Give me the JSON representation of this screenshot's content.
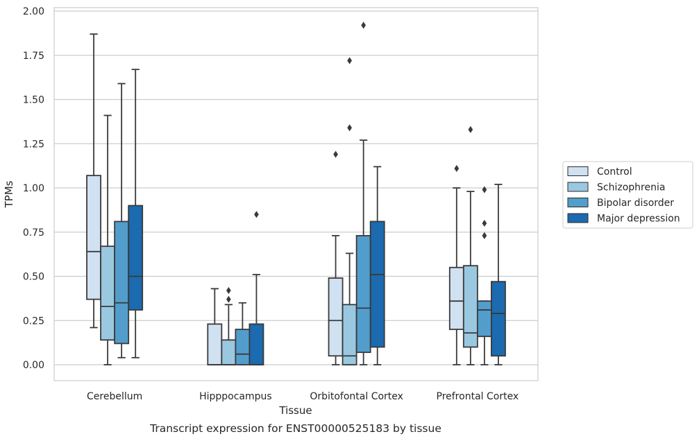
{
  "chart_data": {
    "type": "box",
    "xlabel": "Tissue",
    "ylabel": "TPMs",
    "caption": "Transcript expression for ENST00000525183 by tissue",
    "ylim": [
      -0.09,
      2.04
    ],
    "yticks": [
      "0.00",
      "0.25",
      "0.50",
      "0.75",
      "1.00",
      "1.25",
      "1.50",
      "1.75",
      "2.00"
    ],
    "grid": "horizontal",
    "legend_position": "right",
    "categories": [
      "Cerebellum",
      "Hipppocampus",
      "Orbitofontal Cortex",
      "Prefrontal Cortex"
    ],
    "series": [
      {
        "name": "Control",
        "color": "#d0e1f2",
        "boxes": [
          {
            "whislo": 0.21,
            "q1": 0.37,
            "med": 0.64,
            "q3": 1.07,
            "whishi": 1.87,
            "fliers": []
          },
          {
            "whislo": 0.0,
            "q1": 0.0,
            "med": 0.0,
            "q3": 0.23,
            "whishi": 0.43,
            "fliers": []
          },
          {
            "whislo": 0.0,
            "q1": 0.05,
            "med": 0.25,
            "q3": 0.49,
            "whishi": 0.73,
            "fliers": [
              1.19
            ]
          },
          {
            "whislo": 0.0,
            "q1": 0.2,
            "med": 0.36,
            "q3": 0.55,
            "whishi": 1.0,
            "fliers": [
              1.11
            ]
          }
        ]
      },
      {
        "name": "Schizophrenia",
        "color": "#9ac8e0",
        "boxes": [
          {
            "whislo": 0.0,
            "q1": 0.14,
            "med": 0.33,
            "q3": 0.67,
            "whishi": 1.41,
            "fliers": []
          },
          {
            "whislo": 0.0,
            "q1": 0.0,
            "med": 0.0,
            "q3": 0.14,
            "whishi": 0.34,
            "fliers": [
              0.37,
              0.42
            ]
          },
          {
            "whislo": 0.0,
            "q1": 0.0,
            "med": 0.05,
            "q3": 0.34,
            "whishi": 0.63,
            "fliers": [
              1.34,
              1.72
            ]
          },
          {
            "whislo": 0.0,
            "q1": 0.1,
            "med": 0.18,
            "q3": 0.56,
            "whishi": 0.98,
            "fliers": [
              1.33
            ]
          }
        ]
      },
      {
        "name": "Bipolar disorder",
        "color": "#529dcc",
        "boxes": [
          {
            "whislo": 0.04,
            "q1": 0.12,
            "med": 0.35,
            "q3": 0.81,
            "whishi": 1.59,
            "fliers": []
          },
          {
            "whislo": 0.0,
            "q1": 0.0,
            "med": 0.06,
            "q3": 0.2,
            "whishi": 0.35,
            "fliers": []
          },
          {
            "whislo": 0.0,
            "q1": 0.07,
            "med": 0.32,
            "q3": 0.73,
            "whishi": 1.27,
            "fliers": [
              1.92
            ]
          },
          {
            "whislo": 0.0,
            "q1": 0.16,
            "med": 0.31,
            "q3": 0.36,
            "whishi": 0.36,
            "fliers": [
              0.73,
              0.8,
              0.99
            ]
          }
        ]
      },
      {
        "name": "Major depression",
        "color": "#1c6aaf",
        "boxes": [
          {
            "whislo": 0.04,
            "q1": 0.31,
            "med": 0.5,
            "q3": 0.9,
            "whishi": 1.67,
            "fliers": []
          },
          {
            "whislo": 0.0,
            "q1": 0.0,
            "med": 0.0,
            "q3": 0.23,
            "whishi": 0.51,
            "fliers": [
              0.85
            ]
          },
          {
            "whislo": 0.0,
            "q1": 0.1,
            "med": 0.51,
            "q3": 0.81,
            "whishi": 1.12,
            "fliers": []
          },
          {
            "whislo": 0.0,
            "q1": 0.05,
            "med": 0.29,
            "q3": 0.47,
            "whishi": 1.02,
            "fliers": []
          }
        ]
      }
    ]
  }
}
